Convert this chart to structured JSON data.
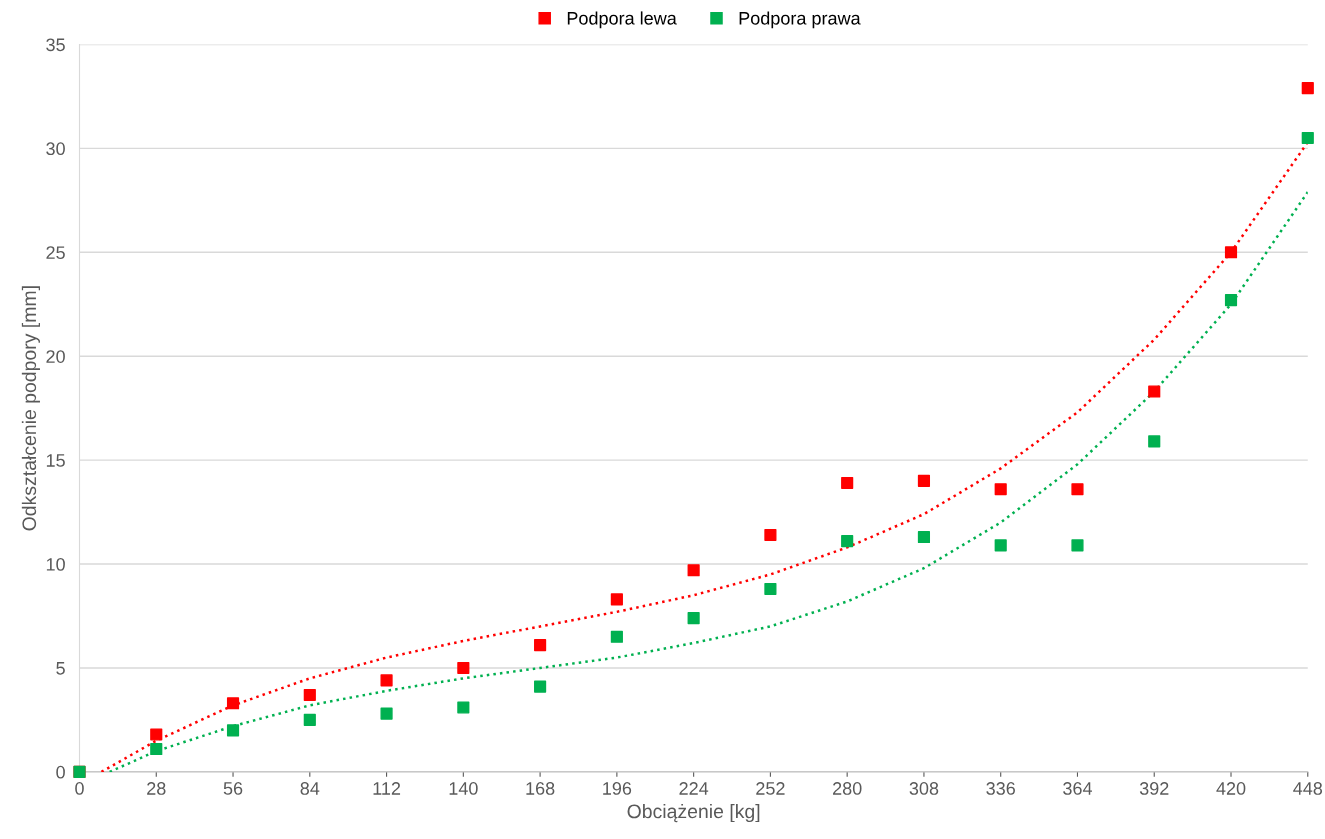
{
  "chart_data": {
    "type": "scatter",
    "xlabel": "Obciążenie [kg]",
    "ylabel": "Odkształcenie podpory [mm]",
    "x": [
      0,
      28,
      56,
      84,
      112,
      140,
      168,
      196,
      224,
      252,
      280,
      308,
      336,
      364,
      392,
      420,
      448
    ],
    "series": [
      {
        "name": "Podpora lewa",
        "color": "#ff0000",
        "marker": "square",
        "values": [
          0,
          1.8,
          3.3,
          3.7,
          4.4,
          5.0,
          6.1,
          8.3,
          9.7,
          11.4,
          13.9,
          14.0,
          13.6,
          13.6,
          18.3,
          25.0,
          32.9
        ]
      },
      {
        "name": "Podpora prawa",
        "color": "#00b050",
        "marker": "square",
        "values": [
          0,
          1.1,
          2.0,
          2.5,
          2.8,
          3.1,
          4.1,
          6.5,
          7.4,
          8.8,
          11.1,
          11.3,
          10.9,
          10.9,
          15.9,
          22.7,
          30.5
        ]
      },
      {
        "color": "#ff0000",
        "type": "line",
        "marker": "none",
        "line_style": "dotted",
        "x": [
          8,
          28,
          56,
          84,
          112,
          140,
          168,
          196,
          224,
          252,
          280,
          308,
          336,
          364,
          392,
          420,
          448
        ],
        "values": [
          0,
          1.5,
          3.2,
          4.5,
          5.5,
          6.3,
          7.0,
          7.7,
          8.5,
          9.5,
          10.8,
          12.4,
          14.6,
          17.3,
          20.8,
          25.0,
          30.3
        ]
      },
      {
        "color": "#00b050",
        "type": "line",
        "marker": "none",
        "line_style": "dotted",
        "x": [
          11,
          28,
          56,
          84,
          112,
          140,
          168,
          196,
          224,
          252,
          280,
          308,
          336,
          364,
          392,
          420,
          448
        ],
        "values": [
          0,
          1.0,
          2.2,
          3.2,
          3.9,
          4.5,
          5.0,
          5.5,
          6.2,
          7.0,
          8.2,
          9.8,
          12.0,
          14.8,
          18.3,
          22.5,
          27.9
        ]
      }
    ],
    "xlim": [
      0,
      448
    ],
    "xticks": [
      0,
      28,
      56,
      84,
      112,
      140,
      168,
      196,
      224,
      252,
      280,
      308,
      336,
      364,
      392,
      420,
      448
    ],
    "ylim": [
      0,
      35
    ],
    "yticks": [
      0,
      5,
      10,
      15,
      20,
      25,
      30,
      35
    ],
    "grid": "y",
    "legend": "top"
  }
}
